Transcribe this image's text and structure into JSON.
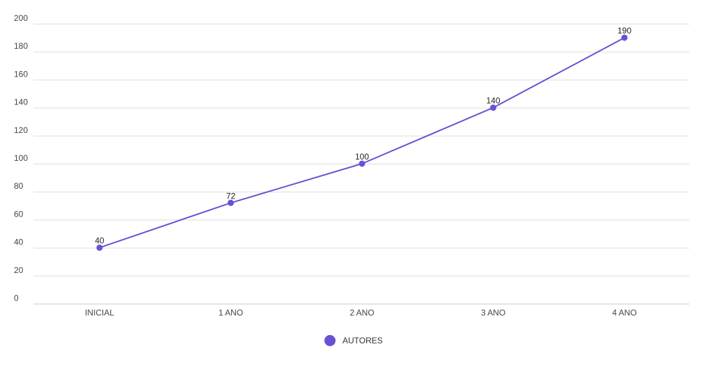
{
  "chart_data": {
    "type": "line",
    "categories": [
      "INICIAL",
      "1 ANO",
      "2 ANO",
      "3 ANO",
      "4 ANO"
    ],
    "series": [
      {
        "name": "AUTORES",
        "values": [
          40,
          72,
          100,
          140,
          190
        ],
        "color": "#6a51d3"
      }
    ],
    "yticks": [
      0,
      20,
      40,
      60,
      80,
      100,
      120,
      140,
      160,
      180,
      200
    ],
    "ylim": [
      0,
      200
    ],
    "grid": true,
    "legend_position": "bottom-center",
    "show_data_labels": true
  }
}
